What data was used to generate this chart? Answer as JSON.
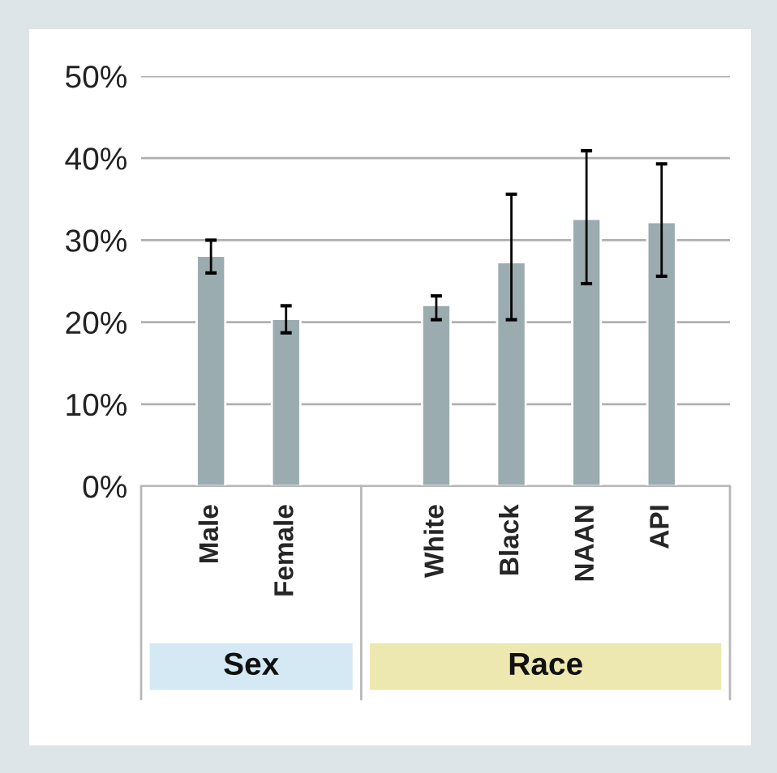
{
  "chart_data": {
    "type": "bar",
    "categories": [
      "Male",
      "Female",
      null,
      "White",
      "Black",
      "NAAN",
      "API"
    ],
    "values": [
      28.1,
      20.4,
      null,
      22.1,
      27.3,
      32.6,
      32.2
    ],
    "errors": [
      [
        26.0,
        30.0
      ],
      [
        18.7,
        22.0
      ],
      null,
      [
        20.3,
        23.2
      ],
      [
        20.3,
        35.6
      ],
      [
        24.7,
        40.9
      ],
      [
        25.6,
        39.3
      ]
    ],
    "color": "#9aacaf",
    "ylim": [
      0,
      50
    ],
    "yticks": [
      {
        "value": 0,
        "label": "0%"
      },
      {
        "value": 10,
        "label": "10%"
      },
      {
        "value": 20,
        "label": "20%"
      },
      {
        "value": 30,
        "label": "30%"
      },
      {
        "value": 40,
        "label": "40%"
      },
      {
        "value": 50,
        "label": "50%"
      }
    ],
    "grid": "y",
    "annotations": [
      "Sex",
      "Race"
    ]
  }
}
